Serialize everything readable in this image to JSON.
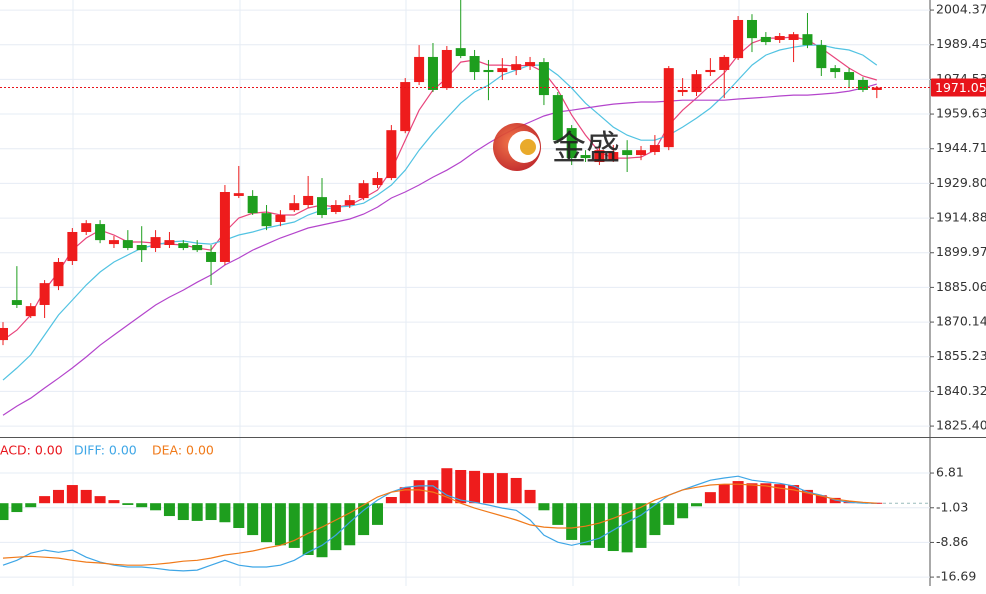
{
  "chart_data": [
    {
      "type": "candlestick",
      "watermark": "金盛",
      "ylim": [
        1820.7,
        2008.7
      ],
      "grid": true,
      "yticks": [
        2004.37,
        1989.45,
        1974.53,
        1959.63,
        1944.71,
        {
          "value": 1929.8,
          "label": "1929.80"
        },
        1914.88,
        1899.97,
        1885.06,
        1870.14,
        1855.23,
        1840.32,
        {
          "value": 1825.4,
          "label": "1825.40"
        }
      ],
      "up_color": "#ee1c1c",
      "down_color": "#1e9e1e",
      "last_price": 1971.05,
      "last_price_color": "#e8141b",
      "open": [
        1862.4,
        1879.6,
        1872.7,
        1877.5,
        1885.6,
        1896.4,
        1908.9,
        1912.3,
        1903.7,
        1905.4,
        1903.3,
        1902.0,
        1903.3,
        1904.1,
        1903.3,
        1900.3,
        1896.0,
        1924.4,
        1924.4,
        1917.0,
        1913.2,
        1918.3,
        1920.5,
        1923.9,
        1917.5,
        1920.5,
        1923.5,
        1929.1,
        1932.1,
        1952.3,
        1973.4,
        1984.2,
        1970.8,
        1988.0,
        1984.6,
        1978.6,
        1977.7,
        1978.6,
        1980.3,
        1982.0,
        1967.8,
        1953.6,
        1942.0,
        1939.0,
        1939.8,
        1944.1,
        1942.0,
        1943.3,
        1945.4,
        1969.1,
        1969.1,
        1977.7,
        1978.6,
        1983.7,
        2000.1,
        1992.8,
        1991.5,
        1991.5,
        1994.0,
        1989.3,
        1979.4,
        1977.7,
        1974.3,
        1970.0
      ],
      "close": [
        1867.6,
        1877.5,
        1877.0,
        1886.9,
        1896.0,
        1908.9,
        1912.7,
        1905.4,
        1905.4,
        1902.0,
        1901.1,
        1906.7,
        1905.4,
        1902.0,
        1901.1,
        1896.0,
        1926.1,
        1925.6,
        1917.0,
        1911.4,
        1916.2,
        1921.3,
        1924.4,
        1916.2,
        1920.5,
        1922.6,
        1929.9,
        1932.1,
        1952.7,
        1973.4,
        1984.2,
        1970.0,
        1987.2,
        1984.6,
        1977.7,
        1977.7,
        1979.4,
        1981.1,
        1982.0,
        1967.8,
        1948.4,
        1940.7,
        1940.7,
        1944.1,
        1943.3,
        1942.0,
        1944.1,
        1946.3,
        1979.4,
        1970.0,
        1976.8,
        1978.6,
        1984.2,
        2000.1,
        1992.3,
        1990.6,
        1993.2,
        1994.0,
        1989.3,
        1979.4,
        1977.7,
        1974.3,
        1970.0,
        1971.05
      ],
      "high": [
        1870.1,
        1894.2,
        1878.3,
        1888.2,
        1897.7,
        1910.6,
        1914.0,
        1914.0,
        1907.2,
        1909.7,
        1911.4,
        1909.7,
        1908.9,
        1905.4,
        1905.4,
        1903.3,
        1929.1,
        1937.3,
        1926.9,
        1920.5,
        1918.3,
        1924.8,
        1933.0,
        1932.1,
        1922.6,
        1924.8,
        1931.2,
        1934.7,
        1954.9,
        1975.1,
        1989.3,
        1990.2,
        1988.9,
        2008.7,
        1987.2,
        1982.9,
        1983.7,
        1984.6,
        1984.2,
        1983.7,
        1969.1,
        1954.9,
        1944.1,
        1945.9,
        1946.3,
        1948.4,
        1945.9,
        1950.6,
        1980.3,
        1975.1,
        1978.6,
        1983.7,
        1985.0,
        2001.8,
        2002.6,
        1994.9,
        1994.5,
        1994.9,
        2003.1,
        1991.5,
        1980.7,
        1979.4,
        1975.5,
        1971.7
      ],
      "low": [
        1860.2,
        1876.2,
        1871.9,
        1871.9,
        1883.9,
        1894.7,
        1907.6,
        1904.1,
        1902.0,
        1901.1,
        1896.0,
        1900.3,
        1902.0,
        1901.1,
        1900.3,
        1886.1,
        1894.7,
        1923.5,
        1916.2,
        1909.7,
        1911.4,
        1917.5,
        1919.2,
        1914.9,
        1916.6,
        1919.2,
        1922.6,
        1927.8,
        1931.2,
        1951.4,
        1972.1,
        1969.1,
        1970.0,
        1983.7,
        1974.3,
        1965.6,
        1974.3,
        1976.4,
        1978.6,
        1963.5,
        1947.1,
        1937.7,
        1939.0,
        1937.7,
        1939.0,
        1934.7,
        1939.8,
        1942.0,
        1944.1,
        1967.4,
        1967.4,
        1976.0,
        1966.5,
        1982.9,
        1986.3,
        1989.3,
        1990.2,
        1982.0,
        1988.0,
        1976.0,
        1975.1,
        1970.8,
        1969.1,
        1966.5
      ],
      "lines": [
        {
          "color": "#e8457c",
          "values": [
            1862.4,
            1866.7,
            1873.2,
            1883.9,
            1891.7,
            1901.1,
            1906.3,
            1909.7,
            1907.6,
            1904.6,
            1904.6,
            1904.1,
            1903.7,
            1903.3,
            1902.0,
            1901.1,
            1908.9,
            1914.9,
            1917.0,
            1917.5,
            1916.2,
            1916.2,
            1919.2,
            1920.5,
            1919.6,
            1920.5,
            1923.5,
            1926.9,
            1935.5,
            1948.4,
            1961.3,
            1970.0,
            1975.1,
            1982.0,
            1982.9,
            1980.7,
            1980.7,
            1980.3,
            1980.7,
            1977.7,
            1970.0,
            1959.2,
            1950.6,
            1943.3,
            1940.7,
            1940.7,
            1941.1,
            1944.1,
            1954.9,
            1961.3,
            1966.5,
            1972.1,
            1977.3,
            1985.0,
            1990.2,
            1992.3,
            1992.3,
            1992.8,
            1991.5,
            1988.0,
            1983.7,
            1979.4,
            1976.0,
            1974.3
          ]
        },
        {
          "color": "#52c3e2",
          "values": [
            1845.2,
            1850.4,
            1856.0,
            1864.6,
            1873.2,
            1879.6,
            1886.1,
            1891.7,
            1896.0,
            1899.0,
            1902.0,
            1903.3,
            1904.6,
            1905.0,
            1904.1,
            1903.7,
            1905.4,
            1907.6,
            1908.9,
            1910.6,
            1911.9,
            1913.2,
            1916.2,
            1918.3,
            1919.6,
            1920.0,
            1921.3,
            1924.8,
            1929.1,
            1935.5,
            1944.1,
            1951.4,
            1957.9,
            1964.3,
            1969.1,
            1972.1,
            1976.4,
            1978.6,
            1980.7,
            1980.7,
            1976.4,
            1970.8,
            1964.3,
            1959.2,
            1954.0,
            1950.6,
            1948.4,
            1948.4,
            1950.6,
            1954.0,
            1957.9,
            1962.2,
            1967.8,
            1974.3,
            1980.7,
            1985.0,
            1987.2,
            1988.4,
            1989.3,
            1989.3,
            1988.0,
            1987.2,
            1985.0,
            1980.7
          ]
        },
        {
          "color": "#b445cc",
          "values": [
            1830.1,
            1834.0,
            1837.4,
            1841.8,
            1846.0,
            1850.4,
            1855.1,
            1860.2,
            1864.6,
            1868.9,
            1873.2,
            1877.5,
            1880.9,
            1883.9,
            1887.3,
            1890.4,
            1894.7,
            1897.7,
            1901.1,
            1903.7,
            1906.3,
            1908.4,
            1910.6,
            1911.9,
            1913.2,
            1914.5,
            1916.6,
            1919.6,
            1923.5,
            1926.1,
            1929.1,
            1932.5,
            1935.5,
            1939.0,
            1943.3,
            1947.1,
            1950.6,
            1953.6,
            1956.2,
            1958.8,
            1960.5,
            1961.3,
            1962.2,
            1963.1,
            1963.9,
            1964.4,
            1964.8,
            1964.8,
            1965.2,
            1965.6,
            1965.6,
            1965.6,
            1965.6,
            1966.1,
            1966.5,
            1966.9,
            1967.4,
            1967.8,
            1967.8,
            1968.2,
            1968.7,
            1969.5,
            1970.8,
            1972.5
          ]
        }
      ]
    },
    {
      "type": "macd",
      "ylim": [
        -18.7,
        14.5
      ],
      "grid": true,
      "yticks": [
        6.81,
        -1.03,
        -8.86,
        -16.69
      ],
      "histogram": {
        "name": "ACD: 0.00",
        "color": "#e8141b",
        "up_color": "#ee1c1c",
        "down_color": "#1e9e1e",
        "values": [
          -3.8,
          -2.0,
          -0.9,
          1.6,
          3.0,
          4.1,
          3.0,
          1.6,
          0.7,
          -0.4,
          -0.9,
          -1.6,
          -2.9,
          -3.8,
          -4.0,
          -3.8,
          -4.3,
          -5.6,
          -7.2,
          -8.8,
          -9.5,
          -10.1,
          -11.7,
          -12.2,
          -10.6,
          -9.5,
          -7.2,
          -4.9,
          1.4,
          3.6,
          5.2,
          5.2,
          7.9,
          7.5,
          7.3,
          6.8,
          6.8,
          5.7,
          3.0,
          -1.6,
          -4.9,
          -8.3,
          -9.5,
          -10.1,
          -10.8,
          -11.1,
          -10.1,
          -7.2,
          -4.9,
          -3.4,
          -0.7,
          2.5,
          4.3,
          5.0,
          4.5,
          4.5,
          4.3,
          4.1,
          3.0,
          1.8,
          1.2,
          0.5,
          0.2,
          0.1
        ]
      },
      "series": [
        {
          "name": "DIFF: 0.00",
          "color": "#3ea6e6",
          "values": [
            -14.0,
            -12.9,
            -11.3,
            -10.6,
            -11.1,
            -10.6,
            -12.2,
            -13.3,
            -14.0,
            -14.4,
            -14.4,
            -14.7,
            -15.1,
            -15.3,
            -15.1,
            -14.0,
            -12.9,
            -14.0,
            -14.4,
            -14.4,
            -14.0,
            -12.9,
            -11.1,
            -9.5,
            -7.2,
            -4.3,
            -1.6,
            0.7,
            2.5,
            3.6,
            3.9,
            3.9,
            1.8,
            0.7,
            0.2,
            -0.4,
            -1.1,
            -1.6,
            -3.8,
            -7.2,
            -8.8,
            -9.5,
            -8.8,
            -7.9,
            -6.1,
            -4.3,
            -2.7,
            -0.4,
            1.8,
            3.0,
            4.1,
            5.2,
            5.7,
            6.1,
            5.2,
            4.8,
            4.5,
            3.9,
            2.5,
            1.8,
            0.7,
            0.2,
            0.0,
            0.0
          ]
        },
        {
          "name": "DEA: 0.00",
          "color": "#f07a1a",
          "values": [
            -12.4,
            -12.2,
            -12.0,
            -12.2,
            -12.4,
            -12.9,
            -13.3,
            -13.5,
            -13.8,
            -14.0,
            -14.0,
            -13.8,
            -13.5,
            -13.1,
            -12.9,
            -12.4,
            -11.7,
            -11.3,
            -10.8,
            -10.1,
            -9.5,
            -8.4,
            -6.8,
            -5.4,
            -3.8,
            -2.2,
            -0.4,
            1.4,
            2.5,
            3.0,
            3.0,
            2.5,
            1.4,
            0.0,
            -1.1,
            -2.0,
            -2.9,
            -3.8,
            -4.9,
            -5.4,
            -5.6,
            -5.6,
            -5.2,
            -4.5,
            -3.4,
            -2.2,
            -0.9,
            0.7,
            1.8,
            3.0,
            3.6,
            4.1,
            4.3,
            4.3,
            4.1,
            3.9,
            3.4,
            3.0,
            2.3,
            1.6,
            0.9,
            0.5,
            0.2,
            0.0
          ]
        }
      ]
    }
  ]
}
